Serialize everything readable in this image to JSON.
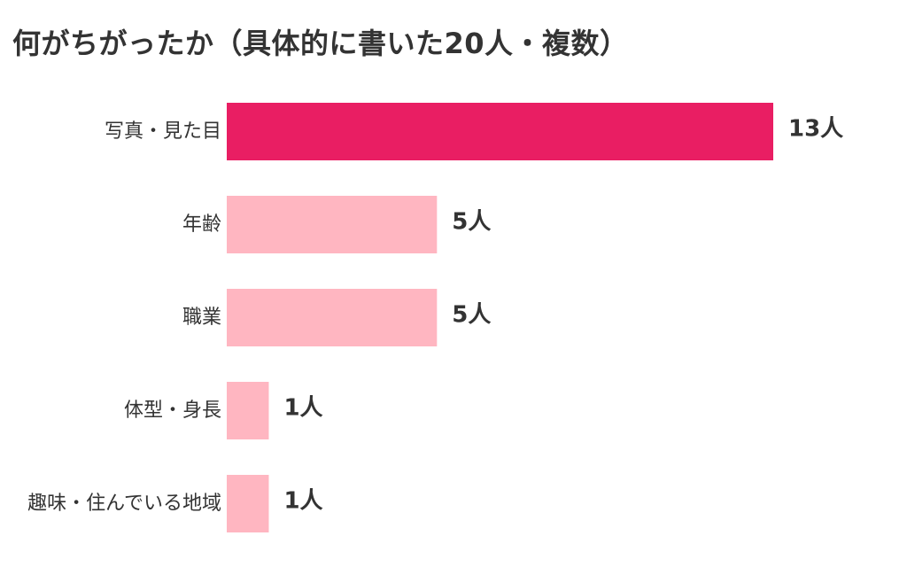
{
  "chart_data": {
    "type": "bar",
    "orientation": "horizontal",
    "title": "何がちがったか（具体的に書いた20人・複数）",
    "categories": [
      "写真・見た目",
      "年齢",
      "職業",
      "体型・身長",
      "趣味・住んでいる地域"
    ],
    "values": [
      13,
      5,
      5,
      1,
      1
    ],
    "value_labels": [
      "13人",
      "5人",
      "5人",
      "1人",
      "1人"
    ],
    "unit": "人",
    "xlim": [
      0,
      13
    ],
    "grid": false,
    "legend": "none",
    "colors": {
      "highlight": "#E91E63",
      "default": "#FFB6C1"
    },
    "highlight_index": 0
  }
}
